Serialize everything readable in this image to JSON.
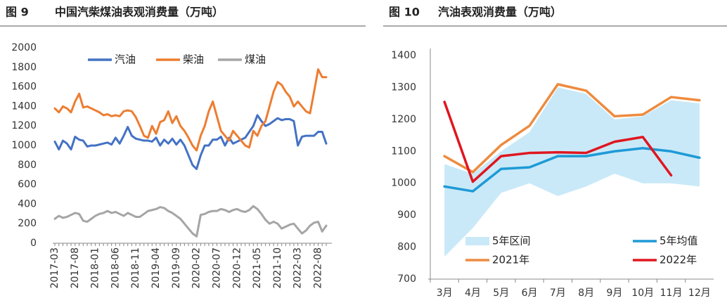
{
  "chart_data": [
    {
      "type": "line",
      "figure": "图 9",
      "title": "中国汽柴煤油表观消费量（万吨）",
      "categories": [
        "2017-03",
        null,
        null,
        null,
        null,
        "2017-08",
        null,
        null,
        null,
        null,
        "2018-01",
        null,
        null,
        null,
        null,
        "2018-06",
        null,
        null,
        null,
        null,
        "2018-11",
        null,
        null,
        null,
        null,
        "2019-04",
        null,
        null,
        null,
        null,
        "2019-09",
        null,
        null,
        null,
        null,
        "2020-02",
        null,
        null,
        null,
        null,
        "2020-07",
        null,
        null,
        null,
        null,
        "2020-12",
        null,
        null,
        null,
        null,
        "2021-05",
        null,
        null,
        null,
        null,
        "2021-10",
        null,
        null,
        null,
        null,
        "2022-03",
        null,
        null,
        null,
        null,
        "2022-08",
        null,
        null
      ],
      "series": [
        {
          "name": "汽油",
          "color": "#4472c4",
          "values": [
            1040,
            960,
            1050,
            1020,
            960,
            1090,
            1060,
            1050,
            990,
            1000,
            1000,
            1010,
            1020,
            1030,
            1010,
            1080,
            1020,
            1100,
            1190,
            1100,
            1070,
            1060,
            1050,
            1050,
            1040,
            1080,
            1000,
            1060,
            1020,
            1070,
            1010,
            1060,
            1000,
            900,
            800,
            760,
            900,
            1000,
            1000,
            1060,
            1060,
            1090,
            1000,
            1080,
            1020,
            1040,
            1060,
            1080,
            1140,
            1200,
            1310,
            1250,
            1200,
            1220,
            1250,
            1280,
            1260,
            1270,
            1270,
            1250,
            1000,
            1090,
            1100,
            1100,
            1100,
            1140,
            1140,
            1020
          ]
        },
        {
          "name": "柴油",
          "color": "#ed7d31",
          "values": [
            1380,
            1340,
            1400,
            1380,
            1340,
            1450,
            1530,
            1390,
            1400,
            1380,
            1360,
            1340,
            1310,
            1320,
            1300,
            1310,
            1300,
            1350,
            1360,
            1350,
            1290,
            1200,
            1100,
            1080,
            1200,
            1120,
            1240,
            1260,
            1350,
            1230,
            1300,
            1200,
            1150,
            1080,
            1000,
            950,
            1100,
            1200,
            1350,
            1450,
            1300,
            1150,
            1100,
            1050,
            1150,
            1100,
            1050,
            1000,
            980,
            1150,
            1100,
            1200,
            1250,
            1400,
            1550,
            1650,
            1620,
            1550,
            1500,
            1400,
            1450,
            1400,
            1350,
            1330,
            1550,
            1780,
            1700,
            1700
          ]
        },
        {
          "name": "煤油",
          "color": "#a5a5a5",
          "values": [
            250,
            280,
            260,
            270,
            290,
            310,
            300,
            230,
            220,
            250,
            280,
            300,
            310,
            330,
            310,
            320,
            300,
            280,
            310,
            290,
            270,
            270,
            300,
            330,
            340,
            350,
            370,
            360,
            330,
            310,
            280,
            250,
            200,
            150,
            100,
            70,
            290,
            300,
            320,
            330,
            330,
            350,
            340,
            320,
            340,
            350,
            330,
            320,
            340,
            380,
            350,
            300,
            240,
            200,
            220,
            200,
            150,
            170,
            190,
            200,
            150,
            100,
            130,
            180,
            210,
            220,
            120,
            180
          ]
        }
      ],
      "ylim": [
        0,
        2000
      ],
      "yticks": [
        0,
        200,
        400,
        600,
        800,
        1000,
        1200,
        1400,
        1600,
        1800,
        2000
      ],
      "grid": false,
      "legend": "top"
    },
    {
      "type": "line",
      "figure": "图 10",
      "title": "汽油表观消费量（万吨）",
      "categories": [
        "3月",
        "4月",
        "5月",
        "6月",
        "7月",
        "8月",
        "9月",
        "10月",
        "11月",
        "12月"
      ],
      "series": [
        {
          "name": "5年区间",
          "color": "#c9e9f8",
          "high": [
            1060,
            1030,
            1100,
            1160,
            1300,
            1280,
            1200,
            1210,
            1260,
            1250
          ],
          "low": [
            770,
            860,
            970,
            1000,
            960,
            990,
            1030,
            1000,
            1000,
            990
          ]
        },
        {
          "name": "5年均值",
          "color": "#1e9ad6",
          "values": [
            990,
            975,
            1045,
            1050,
            1085,
            1085,
            1100,
            1110,
            1100,
            1080
          ]
        },
        {
          "name": "2021年",
          "color": "#ed8b3f",
          "values": [
            1085,
            1035,
            1120,
            1180,
            1310,
            1290,
            1210,
            1215,
            1270,
            1260
          ]
        },
        {
          "name": "2022年",
          "color": "#e0161f",
          "values": [
            1255,
            1005,
            1085,
            1095,
            1097,
            1095,
            1130,
            1145,
            1025,
            null
          ]
        }
      ],
      "ylim": [
        700,
        1400
      ],
      "yticks": [
        700,
        800,
        900,
        1000,
        1100,
        1200,
        1300,
        1400
      ],
      "grid": false,
      "legend": "bottom"
    }
  ]
}
